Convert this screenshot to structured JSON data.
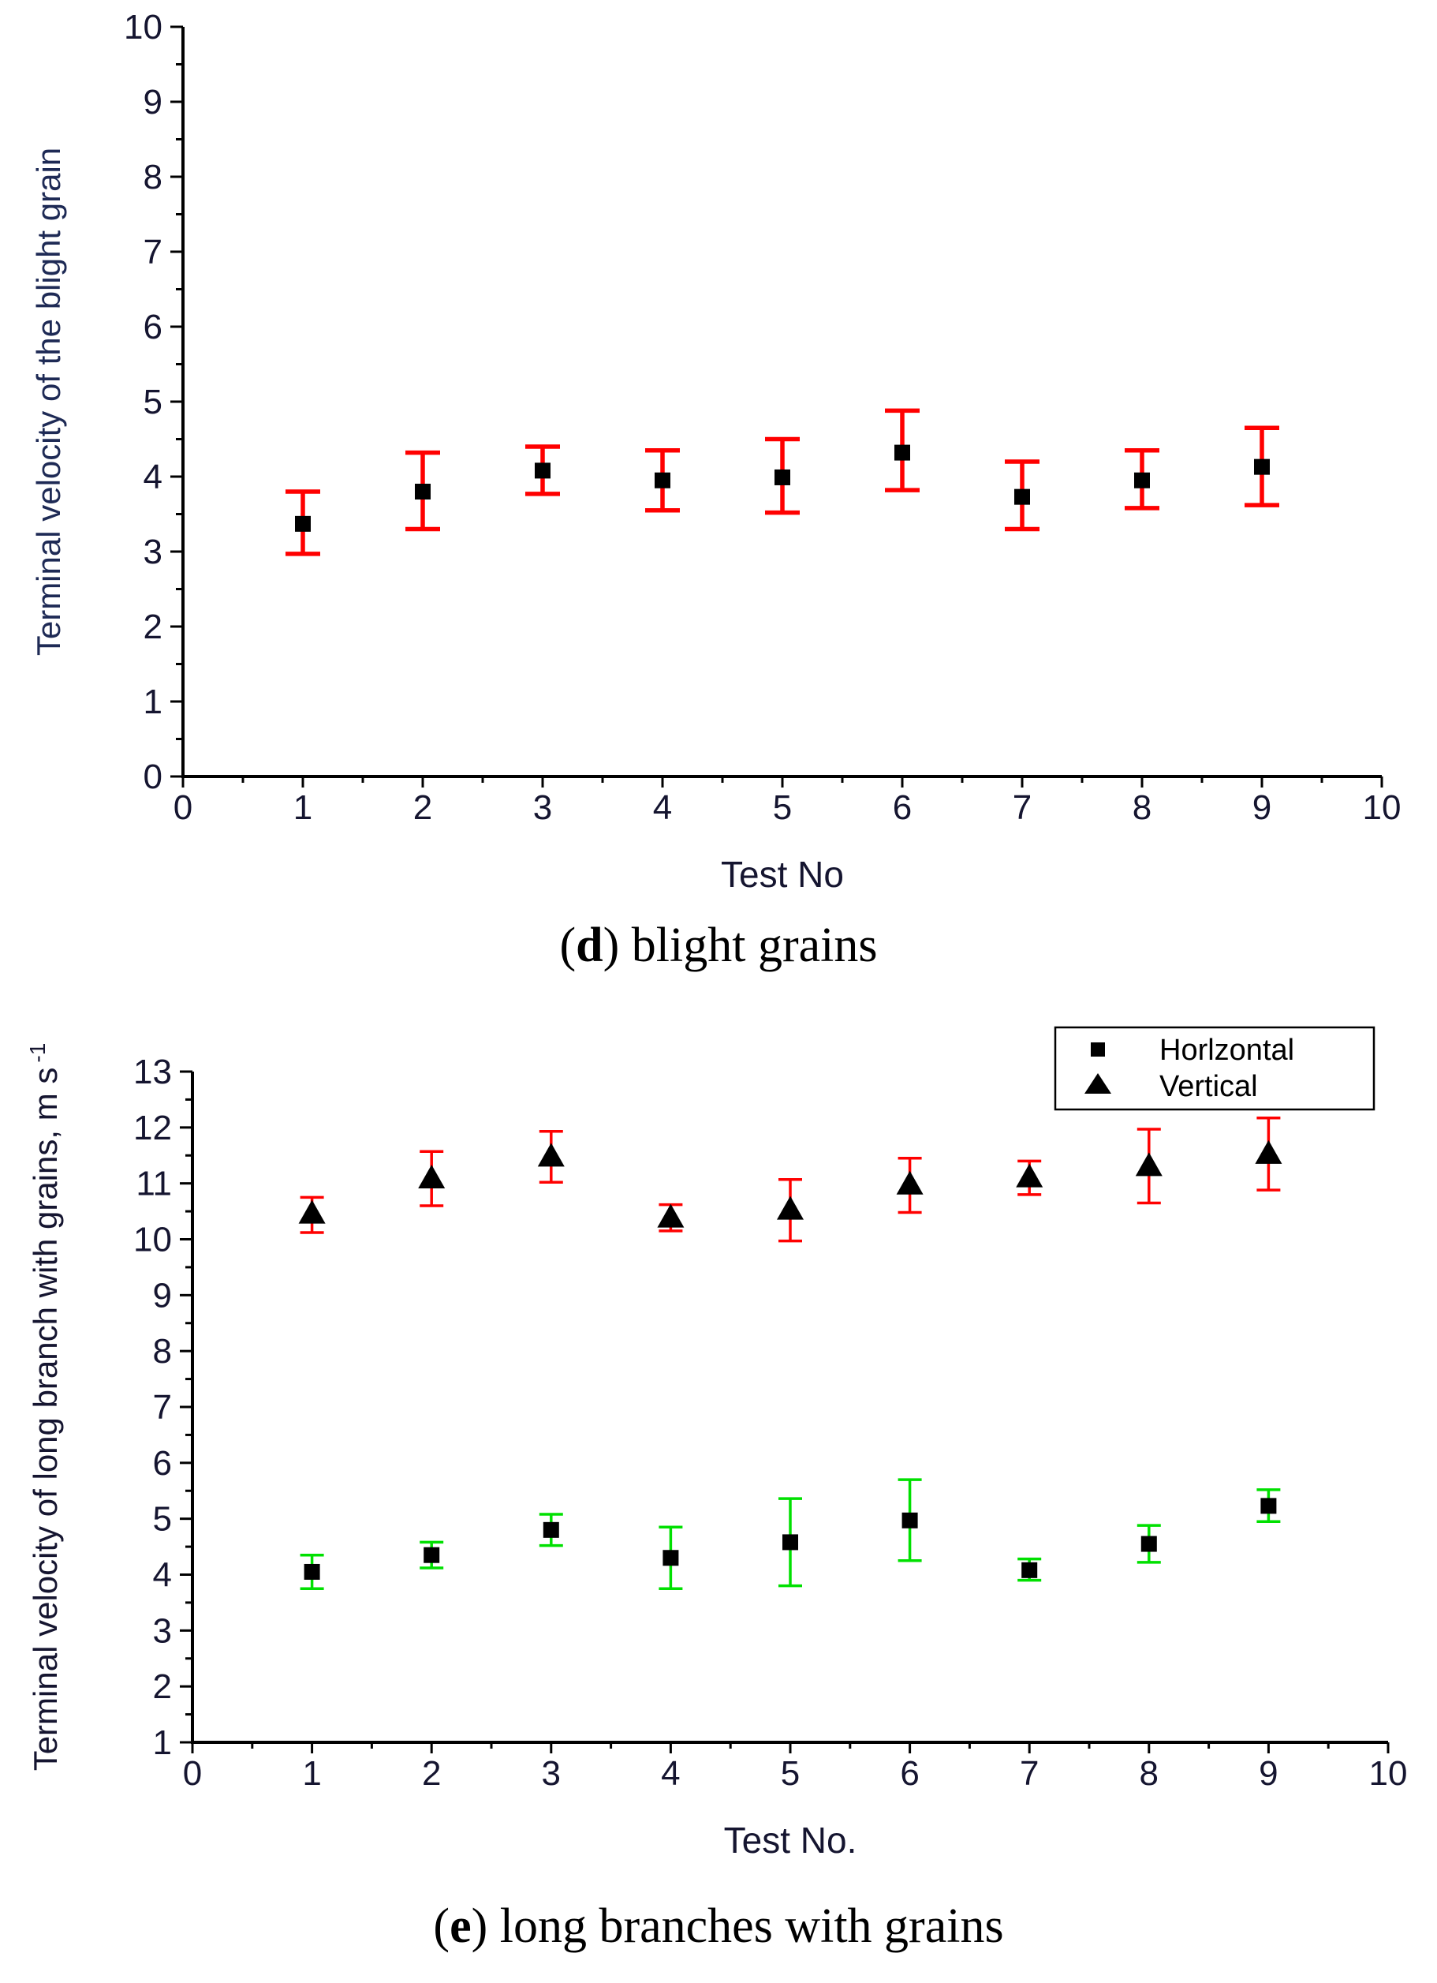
{
  "chart_data": [
    {
      "id": "d",
      "type": "scatter",
      "title": "",
      "caption": {
        "letter": "d",
        "text": "blight grains"
      },
      "xlabel": "Test No",
      "ylabel": "Terminal velocity of the blight grain",
      "xlim": [
        0,
        10
      ],
      "ylim": [
        0,
        10
      ],
      "xticks": [
        "0",
        "1",
        "2",
        "3",
        "4",
        "5",
        "6",
        "7",
        "8",
        "9",
        "10"
      ],
      "yticks": [
        "0",
        "1",
        "2",
        "3",
        "4",
        "5",
        "6",
        "7",
        "8",
        "9",
        "10"
      ],
      "grid": false,
      "series": [
        {
          "name": "blight grains",
          "marker": "square",
          "marker_color": "#000000",
          "errorbar_color": "#ff0000",
          "points": [
            {
              "x": 1,
              "y": 3.37,
              "low": 2.97,
              "high": 3.8
            },
            {
              "x": 2,
              "y": 3.8,
              "low": 3.3,
              "high": 4.32
            },
            {
              "x": 3,
              "y": 4.08,
              "low": 3.77,
              "high": 4.4
            },
            {
              "x": 4,
              "y": 3.95,
              "low": 3.55,
              "high": 4.35
            },
            {
              "x": 5,
              "y": 3.99,
              "low": 3.52,
              "high": 4.5
            },
            {
              "x": 6,
              "y": 4.32,
              "low": 3.82,
              "high": 4.88
            },
            {
              "x": 7,
              "y": 3.73,
              "low": 3.3,
              "high": 4.2
            },
            {
              "x": 8,
              "y": 3.95,
              "low": 3.58,
              "high": 4.35
            },
            {
              "x": 9,
              "y": 4.13,
              "low": 3.62,
              "high": 4.65
            }
          ]
        }
      ]
    },
    {
      "id": "e",
      "type": "scatter",
      "title": "",
      "caption": {
        "letter": "e",
        "text": "long branches with grains"
      },
      "xlabel": "Test No.",
      "ylabel": "Terminal velocity of long branch with grains, m s",
      "ylabel_superscript": "-1",
      "xlim": [
        0,
        10
      ],
      "ylim": [
        1,
        13
      ],
      "xticks": [
        "0",
        "1",
        "2",
        "3",
        "4",
        "5",
        "6",
        "7",
        "8",
        "9",
        "10"
      ],
      "yticks": [
        "1",
        "2",
        "3",
        "4",
        "5",
        "6",
        "7",
        "8",
        "9",
        "10",
        "11",
        "12",
        "13"
      ],
      "grid": false,
      "legend_position": "top-right",
      "series": [
        {
          "name": "Horlzontal",
          "marker": "square",
          "marker_color": "#000000",
          "errorbar_color": "#00e000",
          "points": [
            {
              "x": 1,
              "y": 4.05,
              "low": 3.75,
              "high": 4.35
            },
            {
              "x": 2,
              "y": 4.35,
              "low": 4.12,
              "high": 4.58
            },
            {
              "x": 3,
              "y": 4.8,
              "low": 4.52,
              "high": 5.08
            },
            {
              "x": 4,
              "y": 4.3,
              "low": 3.75,
              "high": 4.85
            },
            {
              "x": 5,
              "y": 4.58,
              "low": 3.8,
              "high": 5.36
            },
            {
              "x": 6,
              "y": 4.97,
              "low": 4.25,
              "high": 5.7
            },
            {
              "x": 7,
              "y": 4.08,
              "low": 3.9,
              "high": 4.28
            },
            {
              "x": 8,
              "y": 4.55,
              "low": 4.22,
              "high": 4.88
            },
            {
              "x": 9,
              "y": 5.23,
              "low": 4.95,
              "high": 5.52
            }
          ]
        },
        {
          "name": "Vertical",
          "marker": "triangle",
          "marker_color": "#000000",
          "errorbar_color": "#ff0000",
          "points": [
            {
              "x": 1,
              "y": 10.45,
              "low": 10.12,
              "high": 10.75
            },
            {
              "x": 2,
              "y": 11.08,
              "low": 10.6,
              "high": 11.57
            },
            {
              "x": 3,
              "y": 11.47,
              "low": 11.02,
              "high": 11.93
            },
            {
              "x": 4,
              "y": 10.38,
              "low": 10.15,
              "high": 10.62
            },
            {
              "x": 5,
              "y": 10.52,
              "low": 9.97,
              "high": 11.07
            },
            {
              "x": 6,
              "y": 10.97,
              "low": 10.48,
              "high": 11.45
            },
            {
              "x": 7,
              "y": 11.1,
              "low": 10.8,
              "high": 11.4
            },
            {
              "x": 8,
              "y": 11.3,
              "low": 10.65,
              "high": 11.97
            },
            {
              "x": 9,
              "y": 11.52,
              "low": 10.88,
              "high": 12.17
            }
          ]
        }
      ]
    }
  ]
}
